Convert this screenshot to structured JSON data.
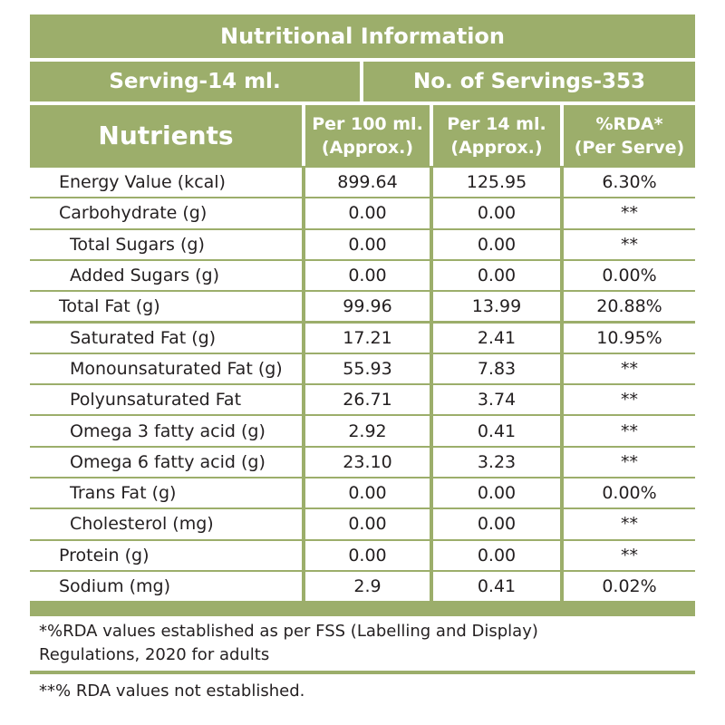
{
  "title": "Nutritional Information",
  "serving": "Serving-14 ml.",
  "servings_count": "No. of Servings-353",
  "headers": {
    "nutrients": "Nutrients",
    "per100_l1": "Per 100 ml.",
    "per100_l2": "(Approx.)",
    "per14_l1": "Per 14 ml.",
    "per14_l2": "(Approx.)",
    "rda_l1": "%RDA*",
    "rda_l2": "(Per Serve)"
  },
  "rows": [
    {
      "name": "Energy Value (kcal)",
      "indent": 0,
      "per100": "899.64",
      "per14": "125.95",
      "rda": "6.30%"
    },
    {
      "name": "Carbohydrate (g)",
      "indent": 0,
      "per100": "0.00",
      "per14": "0.00",
      "rda": "**"
    },
    {
      "name": "Total Sugars (g)",
      "indent": 1,
      "per100": "0.00",
      "per14": "0.00",
      "rda": "**"
    },
    {
      "name": "Added Sugars (g)",
      "indent": 1,
      "per100": "0.00",
      "per14": "0.00",
      "rda": "0.00%"
    },
    {
      "name": "Total Fat (g)",
      "indent": 0,
      "per100": "99.96",
      "per14": "13.99",
      "rda": "20.88%"
    },
    {
      "name": "Saturated Fat (g)",
      "indent": 1,
      "per100": "17.21",
      "per14": "2.41",
      "rda": "10.95%"
    },
    {
      "name": "Monounsaturated Fat (g)",
      "indent": 1,
      "per100": "55.93",
      "per14": "7.83",
      "rda": "**"
    },
    {
      "name": "Polyunsaturated Fat",
      "indent": 1,
      "per100": "26.71",
      "per14": "3.74",
      "rda": "**"
    },
    {
      "name": "Omega 3 fatty acid (g)",
      "indent": 1,
      "per100": "2.92",
      "per14": "0.41",
      "rda": "**"
    },
    {
      "name": "Omega 6 fatty acid (g)",
      "indent": 1,
      "per100": "23.10",
      "per14": "3.23",
      "rda": "**"
    },
    {
      "name": "Trans Fat (g)",
      "indent": 1,
      "per100": "0.00",
      "per14": "0.00",
      "rda": "0.00%"
    },
    {
      "name": "Cholesterol (mg)",
      "indent": 1,
      "per100": "0.00",
      "per14": "0.00",
      "rda": "**"
    },
    {
      "name": "Protein (g)",
      "indent": 0,
      "per100": "0.00",
      "per14": "0.00",
      "rda": "**"
    },
    {
      "name": "Sodium (mg)",
      "indent": 0,
      "per100": "2.9",
      "per14": "0.41",
      "rda": "0.02%"
    }
  ],
  "footnote1_l1": "*%RDA values established as per FSS (Labelling and Display)",
  "footnote1_l2": "Regulations, 2020 for adults",
  "footnote2": "**% RDA values not established.",
  "colors": {
    "accent": "#9cae6b",
    "text": "#231f20",
    "background": "#ffffff"
  }
}
